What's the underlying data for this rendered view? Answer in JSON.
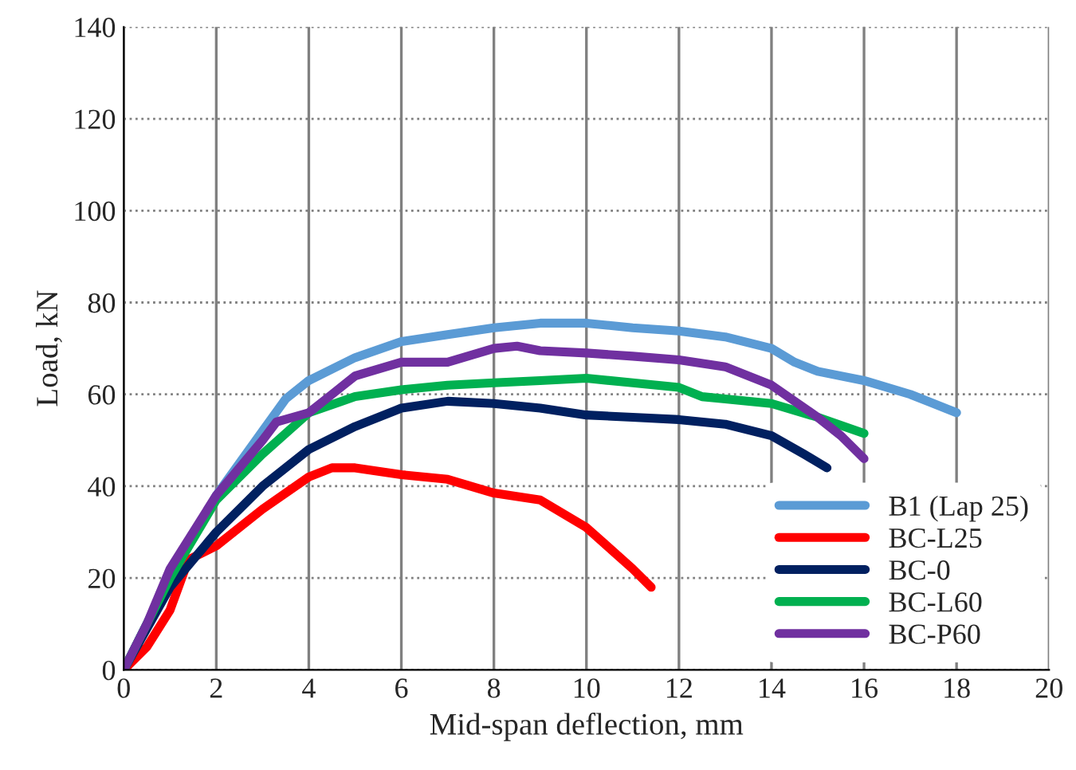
{
  "chart_data": {
    "type": "line",
    "xlabel": "Mid-span deflection, mm",
    "ylabel": "Load, kN",
    "xlim": [
      0,
      20
    ],
    "ylim": [
      0,
      140
    ],
    "xticks": [
      0,
      2,
      4,
      6,
      8,
      10,
      12,
      14,
      16,
      18,
      20
    ],
    "yticks": [
      0,
      20,
      40,
      60,
      80,
      100,
      120,
      140
    ],
    "grid": true,
    "legend": "bottom right",
    "marker": "none",
    "line_style": "solid",
    "series": [
      {
        "name": "B1 (Lap 25)",
        "color": "#5b9bd5",
        "x": [
          0,
          1,
          2,
          3,
          3.5,
          4,
          5,
          6,
          7,
          8,
          9,
          10,
          11,
          12,
          13,
          14,
          14.5,
          15,
          16,
          17,
          18
        ],
        "values": [
          0,
          20,
          38,
          52,
          59,
          63,
          68,
          71.5,
          73,
          74.5,
          75.5,
          75.5,
          74.5,
          73.8,
          72.5,
          70,
          67,
          65,
          63,
          60,
          56
        ]
      },
      {
        "name": "BC-L25",
        "color": "#ff0000",
        "x": [
          0,
          0.5,
          1,
          1.4,
          2,
          3,
          4,
          4.5,
          5,
          6,
          7,
          8,
          9,
          10,
          11,
          11.4
        ],
        "values": [
          0,
          5,
          13,
          24,
          27,
          35,
          42,
          44,
          44,
          42.5,
          41.5,
          38.5,
          37,
          31,
          22,
          18
        ]
      },
      {
        "name": "BC-0",
        "color": "#002060",
        "x": [
          0,
          1,
          2,
          3,
          4,
          5,
          6,
          7,
          8,
          9,
          10,
          11,
          12,
          13,
          14,
          14.7,
          15.2
        ],
        "values": [
          0,
          18,
          30,
          40,
          48,
          53,
          57,
          58.5,
          58,
          57,
          55.5,
          55,
          54.5,
          53.5,
          51,
          47,
          44
        ]
      },
      {
        "name": "BC-L60",
        "color": "#00b050",
        "x": [
          0,
          1,
          2,
          3,
          4,
          5,
          6,
          7,
          8,
          9,
          10,
          11,
          12,
          12.5,
          13,
          14,
          15,
          16
        ],
        "values": [
          0,
          20,
          37,
          47,
          56,
          59.5,
          61,
          62,
          62.5,
          63,
          63.5,
          62.5,
          61.5,
          59.5,
          59,
          58,
          55,
          51.5
        ]
      },
      {
        "name": "BC-P60",
        "color": "#7030a0",
        "x": [
          0,
          0.5,
          1,
          2,
          3,
          3.3,
          4,
          4.5,
          5,
          6,
          7,
          8,
          8.5,
          9,
          10,
          11,
          12,
          13,
          14,
          15,
          15.5,
          16
        ],
        "values": [
          0,
          10,
          22,
          38,
          50,
          54,
          56,
          60,
          64,
          67,
          67,
          70,
          70.5,
          69.5,
          69,
          68.3,
          67.5,
          66,
          62,
          55,
          51,
          46
        ]
      }
    ]
  }
}
